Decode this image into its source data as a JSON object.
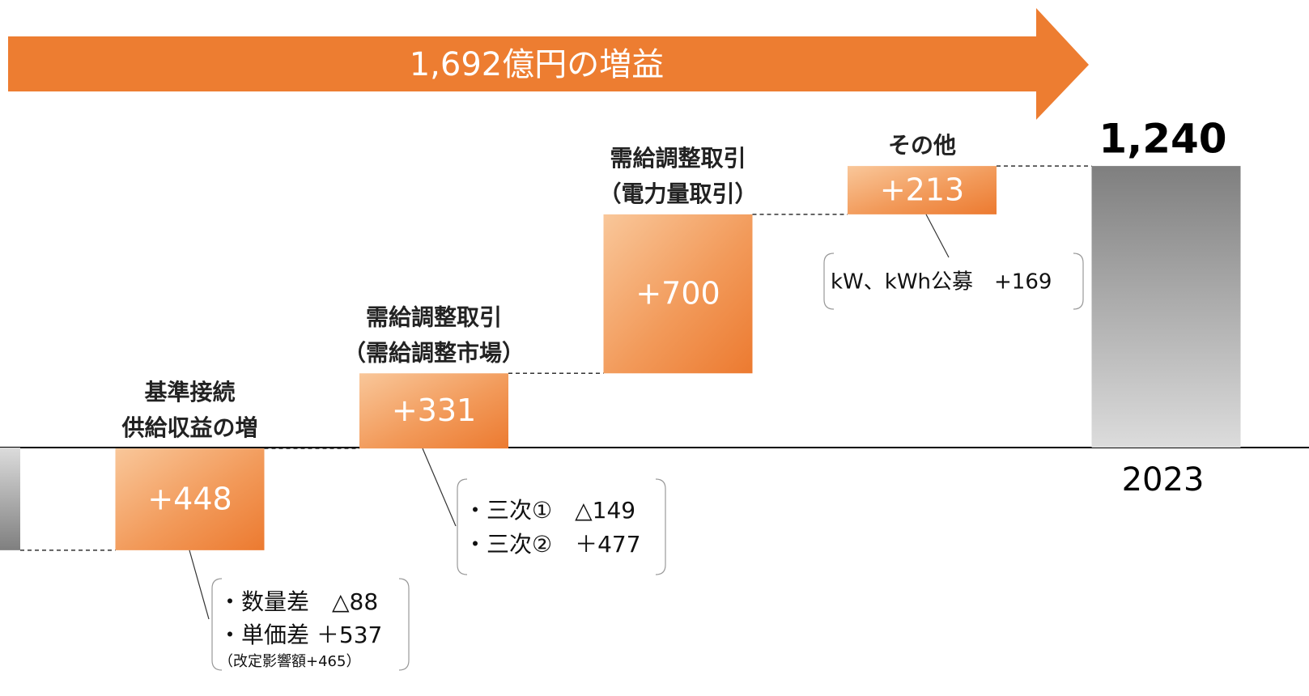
{
  "chart_data": {
    "type": "waterfall",
    "title": "1,692億円の増益",
    "ylim": [
      -1094,
      1971
    ],
    "start": -452,
    "steps": [
      {
        "label": [
          "基準接続",
          "供給収益の増"
        ],
        "value": 448,
        "value_label": "+448",
        "notes": [
          "・数量差　△88",
          "・単価差 ＋537",
          "（改定影響額+465）"
        ]
      },
      {
        "label": [
          "需給調整取引",
          "（需給調整市場）"
        ],
        "value": 331,
        "value_label": "+331",
        "notes": [
          "・三次①　△149",
          "・三次②　＋477"
        ]
      },
      {
        "label": [
          "需給調整取引",
          "（電力量取引）"
        ],
        "value": 700,
        "value_label": "+700",
        "notes": []
      },
      {
        "label": [
          "その他"
        ],
        "value": 213,
        "value_label": "+213",
        "notes": [
          "kW、kWh公募　+169"
        ]
      }
    ],
    "total": {
      "category": "2023",
      "value": 1240,
      "value_label": "1,240"
    }
  }
}
